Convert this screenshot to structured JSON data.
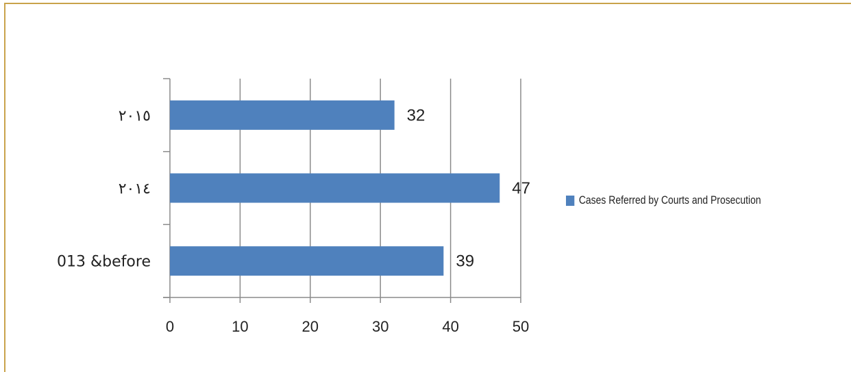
{
  "chart_data": {
    "type": "bar",
    "orientation": "horizontal",
    "categories": [
      "٢٠١٥",
      "٢٠١٤",
      "013 &before"
    ],
    "series": [
      {
        "name": "Cases Referred by Courts and Prosecution",
        "values": [
          32,
          47,
          39
        ]
      }
    ],
    "xlim": [
      0,
      50
    ],
    "xticks": [
      0,
      10,
      20,
      30,
      40,
      50
    ],
    "grid": true,
    "legend_position": "right",
    "bar_color": "#4f81bd"
  }
}
